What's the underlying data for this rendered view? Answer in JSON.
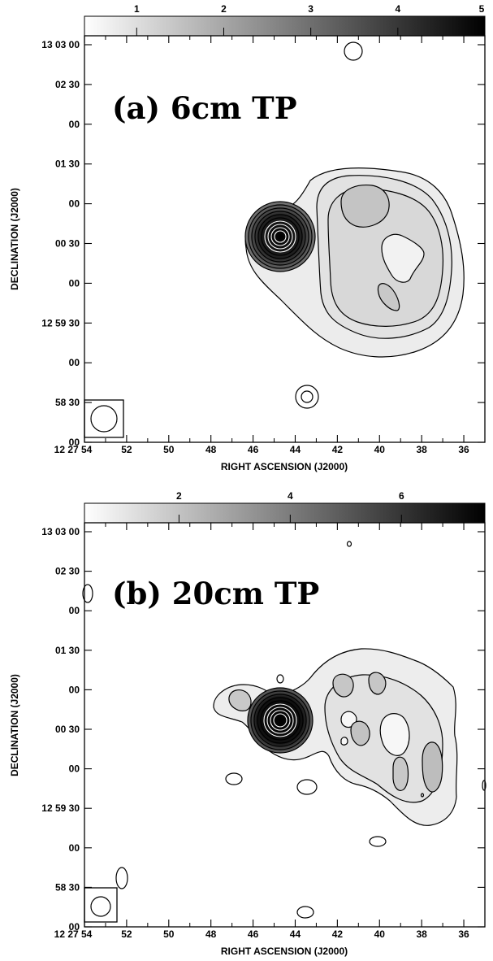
{
  "chart_data": [
    {
      "type": "heatmap",
      "title": "(a) 6cm TP",
      "xlabel": "RIGHT ASCENSION (J2000)",
      "ylabel": "DECLINATION (J2000)",
      "x_ticks": [
        "12 27 54",
        "52",
        "50",
        "48",
        "46",
        "44",
        "42",
        "40",
        "38",
        "36"
      ],
      "y_ticks": [
        "13 03 00",
        "02 30",
        "00",
        "01 30",
        "00",
        "00 30",
        "00",
        "12 59 30",
        "00",
        "58 30",
        "00"
      ],
      "colorbar": {
        "range": [
          0.4,
          5
        ],
        "ticks": [
          1,
          2,
          3,
          4,
          5
        ]
      },
      "colors": {
        "low": "#ffffff",
        "high": "#000000",
        "contour": "#000000"
      }
    },
    {
      "type": "heatmap",
      "title": "(b) 20cm TP",
      "xlabel": "RIGHT ASCENSION (J2000)",
      "ylabel": "DECLINATION (J2000)",
      "x_ticks": [
        "12 27 54",
        "52",
        "50",
        "48",
        "46",
        "44",
        "42",
        "40",
        "38",
        "36"
      ],
      "y_ticks": [
        "13 03 00",
        "02 30",
        "00",
        "01 30",
        "00",
        "00 30",
        "00",
        "12 59 30",
        "00",
        "58 30",
        "00"
      ],
      "colorbar": {
        "range": [
          0.3,
          7.5
        ],
        "ticks": [
          2,
          4,
          6
        ]
      },
      "colors": {
        "low": "#ffffff",
        "high": "#000000",
        "contour": "#000000"
      }
    }
  ]
}
